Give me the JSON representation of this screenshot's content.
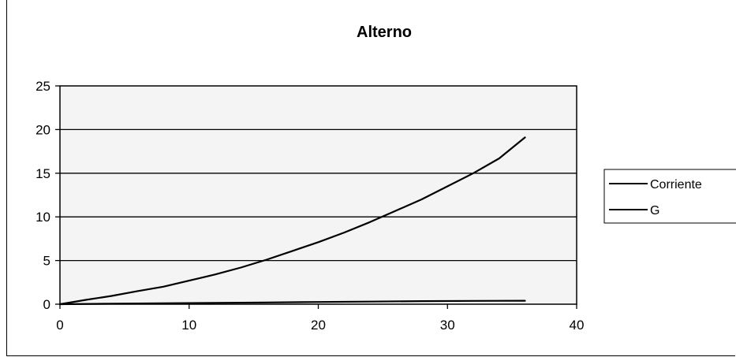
{
  "chart_data": {
    "type": "line",
    "title": "Alterno",
    "xlabel": "",
    "ylabel": "",
    "xlim": [
      0,
      40
    ],
    "ylim": [
      0,
      25
    ],
    "x_ticks": [
      "0",
      "10",
      "20",
      "30",
      "40"
    ],
    "y_ticks": [
      "0",
      "5",
      "10",
      "15",
      "20",
      "25"
    ],
    "grid": "horizontal",
    "legend_position": "right",
    "series": [
      {
        "name": "Corriente",
        "x": [
          0,
          2,
          4,
          6,
          8,
          10,
          12,
          14,
          16,
          18,
          20,
          22,
          24,
          26,
          28,
          30,
          32,
          34,
          36
        ],
        "y": [
          0.0,
          0.5,
          0.95,
          1.5,
          2.0,
          2.7,
          3.4,
          4.2,
          5.1,
          6.1,
          7.1,
          8.2,
          9.4,
          10.7,
          12.0,
          13.5,
          15.0,
          16.7,
          19.1
        ]
      },
      {
        "name": "G",
        "x": [
          0,
          4,
          8,
          12,
          16,
          20,
          24,
          28,
          32,
          36
        ],
        "y": [
          0.0,
          0.05,
          0.1,
          0.15,
          0.2,
          0.25,
          0.3,
          0.35,
          0.38,
          0.4
        ]
      }
    ]
  }
}
